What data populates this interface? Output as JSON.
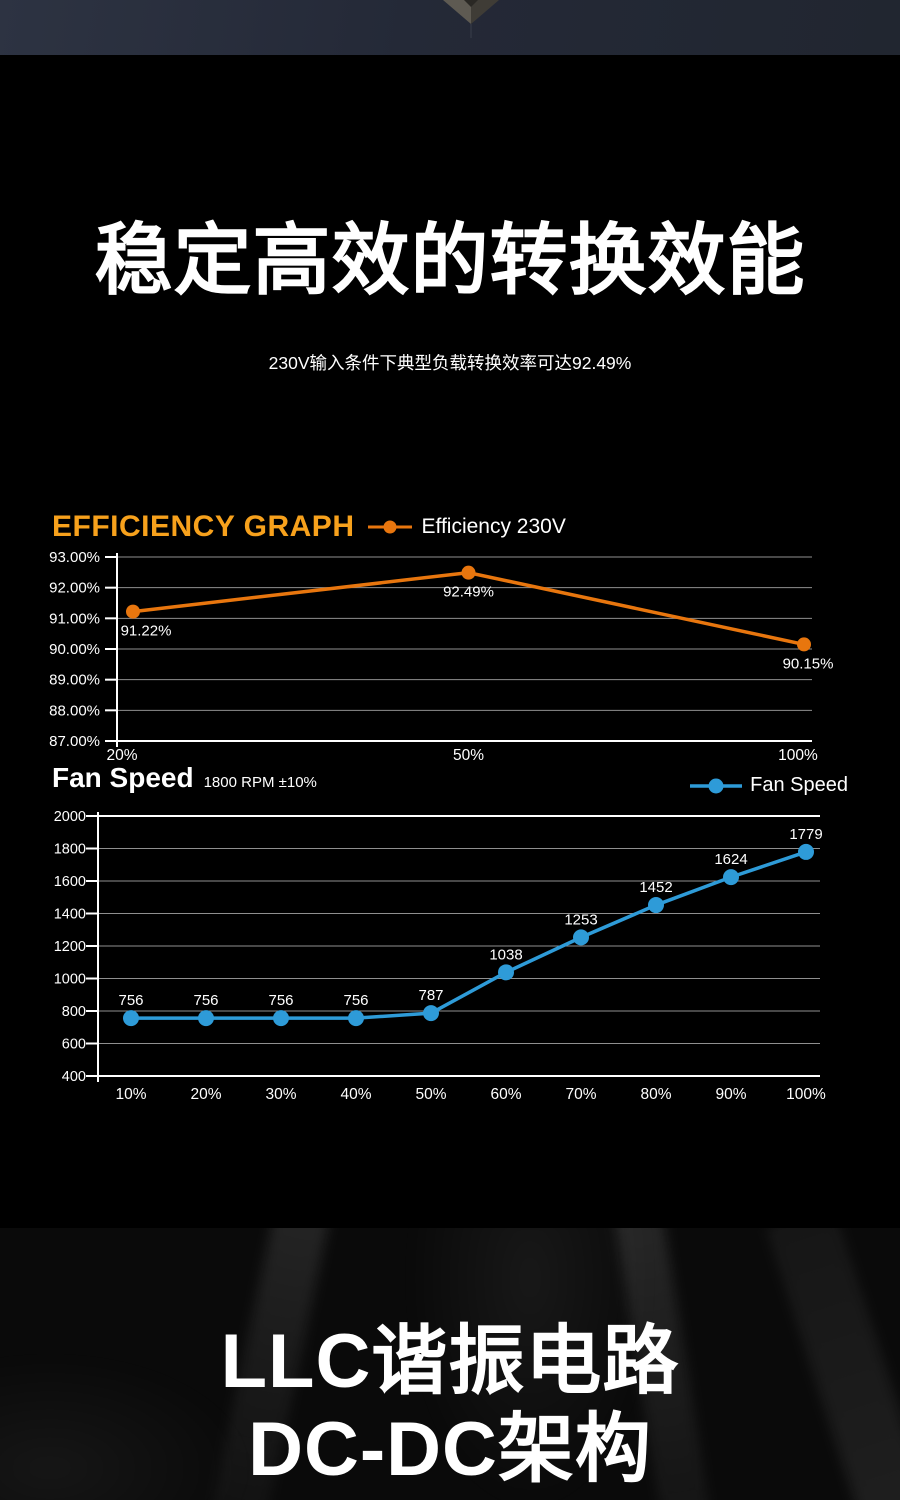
{
  "page": {
    "title": "稳定高效的转换效能",
    "subtitle": "230V输入条件下典型负载转换效率可达92.49%"
  },
  "bottom_banner": {
    "line1": "LLC谐振电路",
    "line2": "DC-DC架构"
  },
  "colors": {
    "efficiency_heading": "#F7A11C",
    "efficiency_line": "#E8760E",
    "fan_line": "#2E9BD8",
    "grid": "#8F8F8F",
    "axis": "#FFFFFF",
    "background": "#000000",
    "hero_strip": "#242937"
  },
  "chart_data": [
    {
      "id": "efficiency",
      "type": "line",
      "title": "EFFICIENCY GRAPH",
      "legend": "Efficiency 230V",
      "legend_position": "top-left-inline",
      "color": "#E8760E",
      "x": [
        "20%",
        "50%",
        "100%"
      ],
      "values": [
        91.22,
        92.49,
        90.15
      ],
      "point_labels": [
        "91.22%",
        "92.49%",
        "90.15%"
      ],
      "ylim": [
        87,
        93
      ],
      "ytick_labels": [
        "93.00%",
        "92.00%",
        "91.00%",
        "90.00%",
        "89.00%",
        "88.00%",
        "87.00%"
      ],
      "grid": true
    },
    {
      "id": "fan",
      "type": "line",
      "title": "Fan Speed",
      "subtitle": "1800 RPM ±10%",
      "legend": "Fan Speed",
      "legend_position": "top-right",
      "color": "#2E9BD8",
      "x": [
        "10%",
        "20%",
        "30%",
        "40%",
        "50%",
        "60%",
        "70%",
        "80%",
        "90%",
        "100%"
      ],
      "values": [
        756,
        756,
        756,
        756,
        787,
        1038,
        1253,
        1452,
        1624,
        1779
      ],
      "point_labels": [
        "756",
        "756",
        "756",
        "756",
        "787",
        "1038",
        "1253",
        "1452",
        "1624",
        "1779"
      ],
      "ylim": [
        400,
        2000
      ],
      "ytick_labels": [
        "2000",
        "1800",
        "1600",
        "1400",
        "1200",
        "1000",
        "800",
        "600",
        "400"
      ],
      "grid": true
    }
  ]
}
